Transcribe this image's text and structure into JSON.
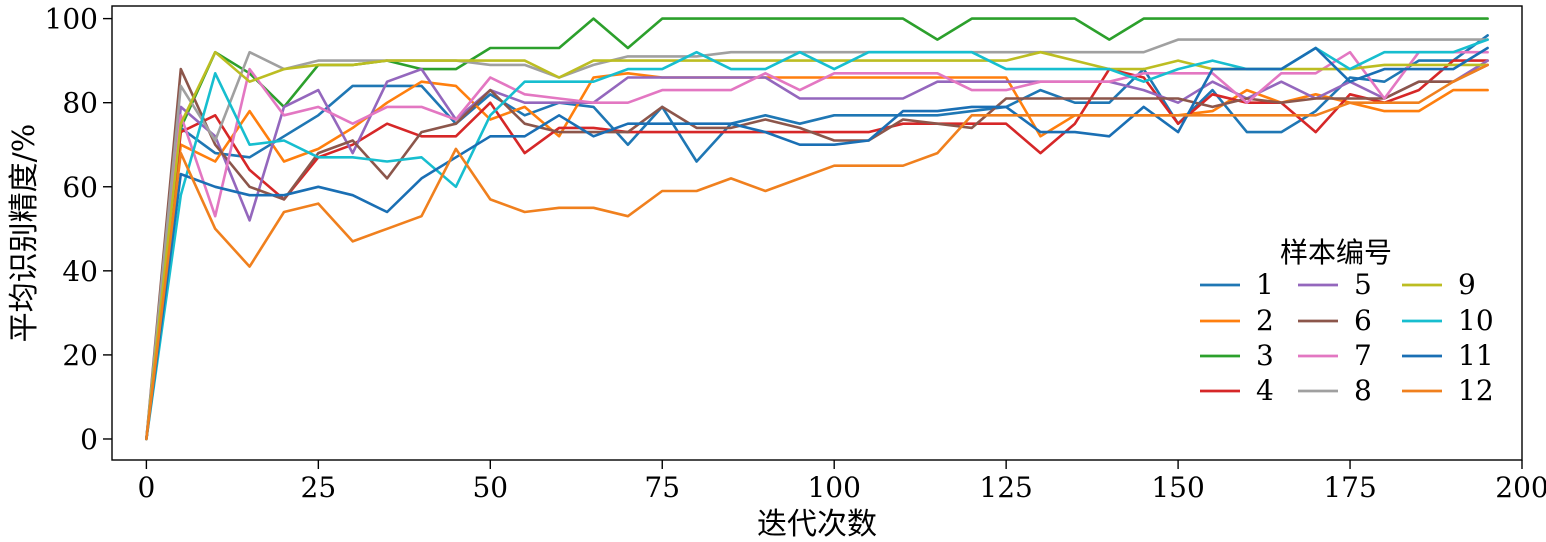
{
  "chart_data": {
    "type": "line",
    "xlabel": "迭代次数",
    "ylabel": "平均识别精度/%",
    "xlim": [
      -5,
      200
    ],
    "ylim": [
      -5,
      103
    ],
    "xticks": [
      0,
      25,
      50,
      75,
      100,
      125,
      150,
      175,
      200
    ],
    "yticks": [
      0,
      20,
      40,
      60,
      80,
      100
    ],
    "x_tick_labels": [
      "0",
      "25",
      "50",
      "75",
      "100",
      "125",
      "150",
      "175",
      "200"
    ],
    "y_tick_labels": [
      "0",
      "20",
      "40",
      "60",
      "80",
      "100"
    ],
    "grid": false,
    "legend": {
      "title": "样本编号",
      "position": "right",
      "columns": 3
    },
    "x": [
      0,
      5,
      10,
      15,
      20,
      25,
      30,
      35,
      40,
      45,
      50,
      55,
      60,
      65,
      70,
      75,
      80,
      85,
      90,
      95,
      100,
      105,
      110,
      115,
      120,
      125,
      130,
      135,
      140,
      145,
      150,
      155,
      160,
      165,
      170,
      175,
      180,
      185,
      190,
      195
    ],
    "series": [
      {
        "name": "1",
        "color": "#1f77b4",
        "values": [
          0,
          74,
          68,
          67,
          72,
          77,
          84,
          84,
          84,
          75,
          82,
          77,
          80,
          79,
          70,
          79,
          66,
          75,
          77,
          75,
          77,
          77,
          77,
          77,
          78,
          79,
          83,
          80,
          80,
          88,
          75,
          83,
          73,
          73,
          78,
          86,
          85,
          90,
          90,
          96
        ]
      },
      {
        "name": "2",
        "color": "#ff7f0e",
        "values": [
          0,
          70,
          66,
          78,
          66,
          69,
          74,
          80,
          85,
          84,
          76,
          79,
          72,
          86,
          87,
          86,
          86,
          86,
          86,
          86,
          86,
          86,
          86,
          86,
          86,
          86,
          72,
          77,
          77,
          77,
          77,
          78,
          83,
          80,
          82,
          80,
          78,
          78,
          83,
          83
        ]
      },
      {
        "name": "3",
        "color": "#2ca02c",
        "values": [
          0,
          74,
          92,
          87,
          79,
          89,
          89,
          90,
          88,
          88,
          93,
          93,
          93,
          100,
          93,
          100,
          100,
          100,
          100,
          100,
          100,
          100,
          100,
          95,
          100,
          100,
          100,
          100,
          95,
          100,
          100,
          100,
          100,
          100,
          100,
          100,
          100,
          100,
          100,
          100
        ]
      },
      {
        "name": "4",
        "color": "#d62728",
        "values": [
          0,
          73,
          77,
          64,
          57,
          67,
          70,
          75,
          72,
          72,
          80,
          68,
          74,
          74,
          73,
          73,
          73,
          73,
          73,
          73,
          73,
          73,
          75,
          75,
          75,
          75,
          68,
          75,
          88,
          86,
          75,
          82,
          80,
          80,
          73,
          82,
          80,
          83,
          90,
          90
        ]
      },
      {
        "name": "5",
        "color": "#9467bd",
        "values": [
          0,
          79,
          72,
          52,
          79,
          83,
          68,
          85,
          88,
          76,
          83,
          80,
          80,
          80,
          86,
          86,
          86,
          86,
          86,
          81,
          81,
          81,
          81,
          85,
          85,
          85,
          85,
          85,
          85,
          83,
          80,
          85,
          81,
          85,
          81,
          85,
          81,
          85,
          85,
          90
        ]
      },
      {
        "name": "6",
        "color": "#8c564b",
        "values": [
          0,
          88,
          70,
          60,
          57,
          68,
          71,
          62,
          73,
          75,
          83,
          75,
          73,
          73,
          73,
          79,
          74,
          74,
          76,
          74,
          71,
          71,
          76,
          75,
          74,
          81,
          81,
          81,
          81,
          81,
          81,
          79,
          81,
          80,
          81,
          81,
          81,
          85,
          85,
          89
        ]
      },
      {
        "name": "7",
        "color": "#e377c2",
        "values": [
          0,
          77,
          53,
          88,
          77,
          79,
          75,
          79,
          79,
          76,
          86,
          82,
          81,
          80,
          80,
          83,
          83,
          83,
          87,
          83,
          87,
          87,
          87,
          87,
          83,
          83,
          85,
          85,
          85,
          87,
          87,
          87,
          80,
          87,
          87,
          92,
          81,
          92,
          92,
          92
        ]
      },
      {
        "name": "8",
        "color": "#a0a0a0",
        "values": [
          0,
          84,
          71,
          92,
          88,
          90,
          90,
          90,
          90,
          90,
          89,
          89,
          86,
          89,
          91,
          91,
          91,
          92,
          92,
          92,
          92,
          92,
          92,
          92,
          92,
          92,
          92,
          92,
          92,
          92,
          95,
          95,
          95,
          95,
          95,
          95,
          95,
          95,
          95,
          95
        ]
      },
      {
        "name": "9",
        "color": "#bcbd22",
        "values": [
          0,
          75,
          92,
          85,
          88,
          89,
          89,
          90,
          90,
          90,
          90,
          90,
          86,
          90,
          90,
          90,
          90,
          90,
          90,
          90,
          90,
          90,
          90,
          90,
          90,
          90,
          92,
          90,
          88,
          88,
          90,
          88,
          88,
          88,
          88,
          88,
          89,
          89,
          89,
          89
        ]
      },
      {
        "name": "10",
        "color": "#17becf",
        "values": [
          0,
          58,
          87,
          70,
          71,
          67,
          67,
          66,
          67,
          60,
          77,
          85,
          85,
          85,
          88,
          88,
          92,
          88,
          88,
          92,
          88,
          92,
          92,
          92,
          92,
          88,
          88,
          88,
          88,
          85,
          88,
          90,
          88,
          88,
          93,
          88,
          92,
          92,
          92,
          95
        ]
      },
      {
        "name": "11",
        "color": "#1a6fb4",
        "values": [
          0,
          63,
          60,
          58,
          58,
          60,
          58,
          54,
          62,
          67,
          72,
          72,
          77,
          72,
          75,
          75,
          75,
          75,
          73,
          70,
          70,
          71,
          78,
          78,
          79,
          79,
          73,
          73,
          72,
          79,
          73,
          88,
          88,
          88,
          93,
          85,
          88,
          88,
          88,
          93
        ]
      },
      {
        "name": "12",
        "color": "#f0801e",
        "values": [
          0,
          68,
          50,
          41,
          54,
          56,
          47,
          50,
          53,
          69,
          57,
          54,
          55,
          55,
          53,
          59,
          59,
          62,
          59,
          62,
          65,
          65,
          65,
          68,
          77,
          77,
          77,
          77,
          77,
          77,
          77,
          77,
          77,
          77,
          77,
          80,
          80,
          80,
          85,
          89
        ]
      }
    ]
  }
}
